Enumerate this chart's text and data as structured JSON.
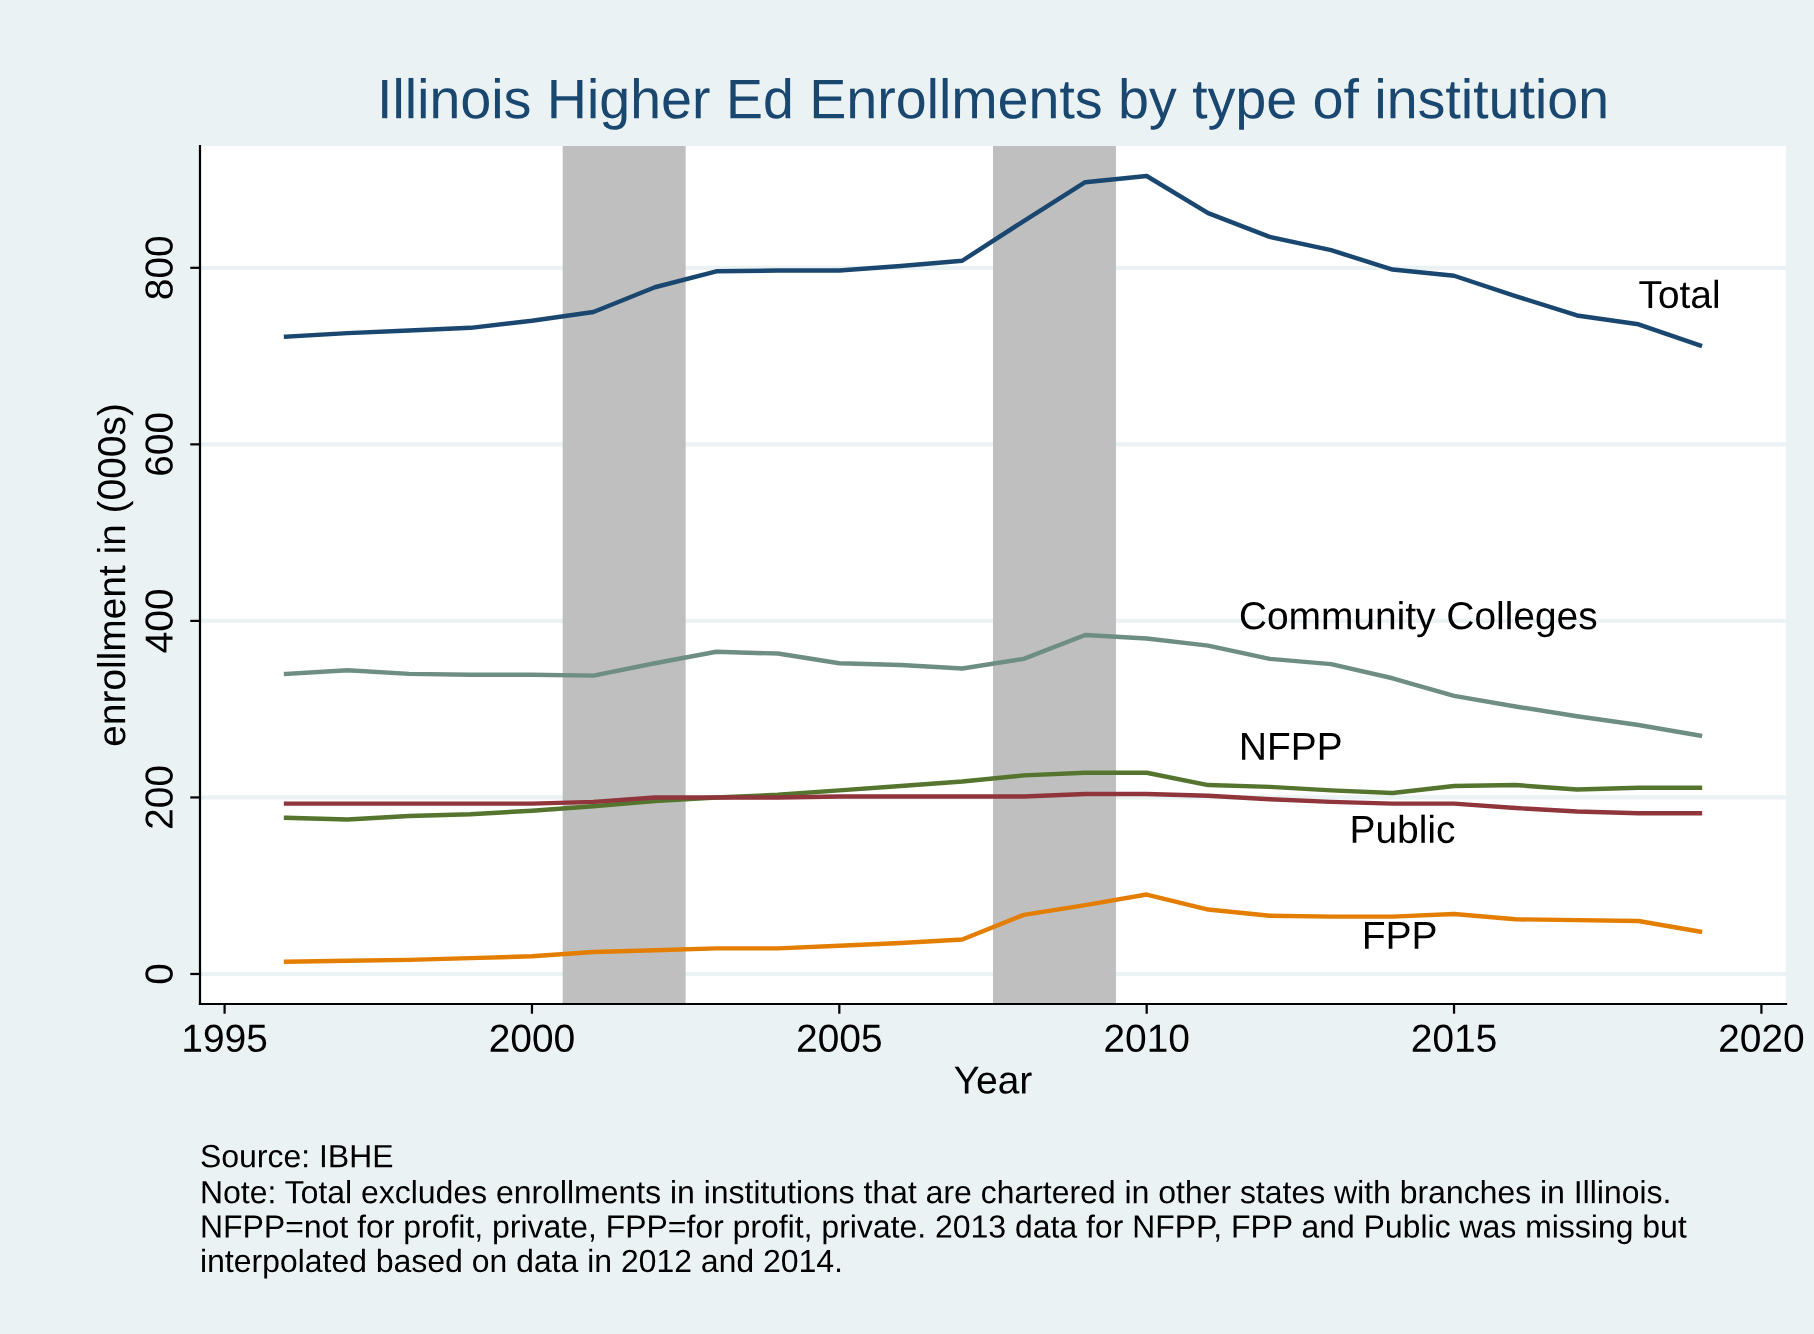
{
  "chart_data": {
    "type": "line",
    "title": "Illinois Higher Ed Enrollments by type of institution",
    "xlabel": "Year",
    "ylabel": "enrollment in (000s)",
    "x": [
      1996,
      1997,
      1998,
      1999,
      2000,
      2001,
      2002,
      2003,
      2004,
      2005,
      2006,
      2007,
      2008,
      2009,
      2010,
      2011,
      2012,
      2013,
      2014,
      2015,
      2016,
      2017,
      2018,
      2019
    ],
    "series": [
      {
        "name": "Total",
        "color": "#1a476f",
        "values": [
          722,
          726,
          729,
          732,
          740,
          750,
          778,
          796,
          797,
          797,
          802,
          808,
          853,
          897,
          904,
          862,
          835,
          820,
          798,
          791,
          768,
          746,
          736,
          712
        ]
      },
      {
        "name": "Community Colleges",
        "color": "#6e8e84",
        "values": [
          340,
          344,
          340,
          339,
          339,
          338,
          352,
          365,
          363,
          352,
          350,
          346,
          357,
          384,
          380,
          372,
          357,
          351,
          335,
          315,
          303,
          292,
          282,
          270
        ]
      },
      {
        "name": "NFPP",
        "color": "#55752f",
        "values": [
          177,
          175,
          179,
          181,
          185,
          190,
          196,
          200,
          203,
          208,
          213,
          218,
          225,
          228,
          228,
          214,
          212,
          208,
          205,
          213,
          214,
          209,
          211,
          211
        ]
      },
      {
        "name": "Public",
        "color": "#90353b",
        "values": [
          193,
          193,
          193,
          193,
          193,
          195,
          200,
          200,
          200,
          201,
          201,
          201,
          201,
          204,
          204,
          202,
          198,
          195,
          193,
          193,
          188,
          184,
          182,
          182
        ]
      },
      {
        "name": "FPP",
        "color": "#e37e00",
        "values": [
          14,
          15,
          16,
          18,
          20,
          25,
          27,
          29,
          29,
          32,
          35,
          39,
          67,
          78,
          90,
          73,
          66,
          65,
          65,
          68,
          62,
          61,
          60,
          48
        ]
      }
    ],
    "bands": [
      {
        "axis": "x",
        "from": 2000.5,
        "to": 2002.5,
        "color": "#bfbfbf"
      },
      {
        "axis": "x",
        "from": 2007.5,
        "to": 2009.5,
        "color": "#bfbfbf"
      }
    ],
    "xlim": [
      1994.6,
      2020.4
    ],
    "ylim": [
      -34,
      938
    ],
    "xticks": [
      1995,
      2000,
      2005,
      2010,
      2015,
      2020
    ],
    "yticks": [
      0,
      200,
      400,
      600,
      800
    ],
    "grid": "y",
    "legend": false,
    "line_style": "solid",
    "marker": "none",
    "annotations": [
      "Source: IBHE",
      "Note: Total excludes enrollments in institutions that are chartered in other states with branches in Illinois. NFPP=not for profit, private, FPP=for profit, private. 2013 data for NFPP, FPP and Public was missing but interpolated based on data in 2012 and 2014."
    ]
  }
}
